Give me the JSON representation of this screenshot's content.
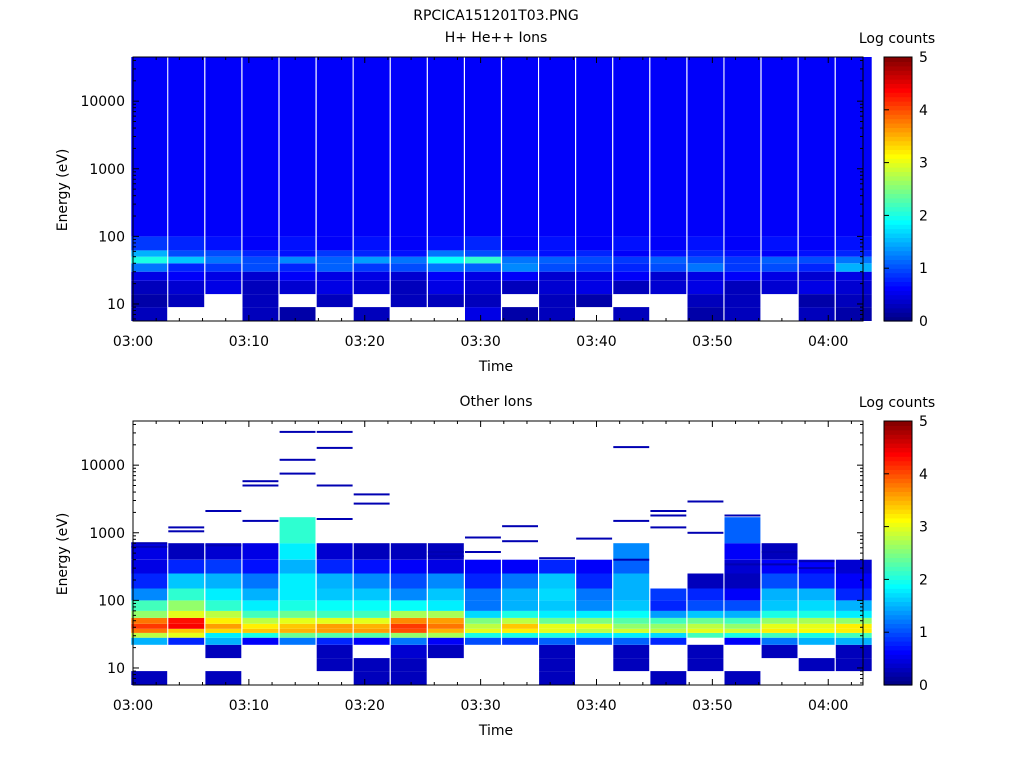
{
  "figure_title": "RPCICA151201T03.PNG",
  "colorbar_label": "Log counts",
  "colormap": [
    "#00007f",
    "#0000ff",
    "#007fff",
    "#00ffff",
    "#7fff7f",
    "#ffff00",
    "#ff7f00",
    "#ff0000",
    "#7f0000"
  ],
  "chart_data": [
    {
      "type": "heatmap",
      "title": "H+ He++ Ions",
      "xlabel": "Time",
      "ylabel": "Energy (eV)",
      "x_ticks": [
        "03:00",
        "03:10",
        "03:20",
        "03:30",
        "03:40",
        "03:50",
        "04:00"
      ],
      "x_tick_minutes": [
        0,
        10,
        20,
        30,
        40,
        50,
        60
      ],
      "x_range_minutes": [
        0,
        63
      ],
      "y_scale": "log",
      "y_ticks": [
        "10",
        "100",
        "1000",
        "10000"
      ],
      "y_tick_values": [
        10,
        100,
        1000,
        10000
      ],
      "y_range": [
        5.6,
        45000
      ],
      "colorbar": {
        "label": "Log counts",
        "range": [
          0,
          5
        ],
        "ticks": [
          "0",
          "1",
          "2",
          "3",
          "4",
          "5"
        ]
      },
      "time_bins_minutes": [
        1.4,
        4.6,
        7.8,
        11.0,
        14.2,
        17.4,
        20.6,
        23.8,
        27.0,
        30.2,
        33.4,
        36.6,
        39.8,
        43.0,
        46.2,
        49.4,
        52.6,
        55.8,
        59.0,
        62.2
      ],
      "energy_bands_eV": [
        {
          "range": [
            5.6,
            9
          ],
          "values": [
            0.3,
            0.0,
            0.0,
            0.3,
            0.2,
            0.0,
            0.3,
            0.0,
            0.0,
            0.5,
            0.2,
            0.3,
            0.0,
            0.3,
            0.0,
            0.2,
            0.3,
            0.0,
            0.3,
            0.2
          ]
        },
        {
          "range": [
            9,
            14
          ],
          "values": [
            0.2,
            0.3,
            0.0,
            0.3,
            0.0,
            0.3,
            0.0,
            0.3,
            0.3,
            0.3,
            0.0,
            0.3,
            0.2,
            0.0,
            0.0,
            0.3,
            0.3,
            0.0,
            0.2,
            0.3
          ]
        },
        {
          "range": [
            14,
            22
          ],
          "values": [
            0.3,
            0.4,
            0.5,
            0.3,
            0.4,
            0.5,
            0.4,
            0.3,
            0.5,
            0.4,
            0.3,
            0.4,
            0.5,
            0.3,
            0.4,
            0.5,
            0.3,
            0.4,
            0.5,
            0.4
          ]
        },
        {
          "range": [
            22,
            30
          ],
          "values": [
            0.5,
            0.6,
            0.5,
            0.4,
            0.6,
            0.5,
            0.5,
            0.4,
            0.6,
            0.5,
            0.6,
            0.4,
            0.5,
            0.6,
            0.4,
            0.5,
            0.6,
            0.5,
            0.4,
            0.5
          ]
        },
        {
          "range": [
            30,
            40
          ],
          "values": [
            1.2,
            0.8,
            0.9,
            1.0,
            0.8,
            1.1,
            0.9,
            1.0,
            1.2,
            1.1,
            1.3,
            1.0,
            0.9,
            0.8,
            1.0,
            1.2,
            0.9,
            1.0,
            0.8,
            1.5
          ]
        },
        {
          "range": [
            40,
            50
          ],
          "values": [
            2.0,
            1.6,
            1.2,
            1.0,
            1.3,
            1.1,
            1.4,
            1.2,
            1.9,
            2.1,
            1.2,
            1.1,
            1.0,
            0.9,
            1.1,
            1.0,
            0.9,
            1.1,
            1.0,
            1.2
          ]
        },
        {
          "range": [
            50,
            62
          ],
          "values": [
            1.5,
            1.0,
            1.0,
            0.8,
            0.7,
            0.9,
            0.8,
            0.7,
            1.2,
            1.0,
            0.8,
            0.7,
            0.8,
            0.6,
            0.7,
            0.8,
            0.7,
            0.6,
            0.7,
            0.8
          ]
        },
        {
          "range": [
            62,
            100
          ],
          "values": [
            0.9,
            0.8,
            0.7,
            0.6,
            0.7,
            0.6,
            0.7,
            0.6,
            0.7,
            0.8,
            0.6,
            0.7,
            0.6,
            0.7,
            0.6,
            0.7,
            0.6,
            0.7,
            0.6,
            0.7
          ]
        },
        {
          "range": [
            100,
            45000
          ],
          "values": [
            0.6,
            0.6,
            0.6,
            0.6,
            0.6,
            0.6,
            0.6,
            0.6,
            0.6,
            0.6,
            0.6,
            0.6,
            0.6,
            0.6,
            0.6,
            0.6,
            0.6,
            0.6,
            0.6,
            0.6
          ]
        }
      ]
    },
    {
      "type": "heatmap",
      "title": "Other Ions",
      "xlabel": "Time",
      "ylabel": "Energy (eV)",
      "x_ticks": [
        "03:00",
        "03:10",
        "03:20",
        "03:30",
        "03:40",
        "03:50",
        "04:00"
      ],
      "x_tick_minutes": [
        0,
        10,
        20,
        30,
        40,
        50,
        60
      ],
      "x_range_minutes": [
        0,
        63
      ],
      "y_scale": "log",
      "y_ticks": [
        "10",
        "100",
        "1000",
        "10000"
      ],
      "y_tick_values": [
        10,
        100,
        1000,
        10000
      ],
      "y_range": [
        5.6,
        45000
      ],
      "colorbar": {
        "label": "Log counts",
        "range": [
          0,
          5
        ],
        "ticks": [
          "0",
          "1",
          "2",
          "3",
          "4",
          "5"
        ]
      },
      "time_bins_minutes": [
        1.4,
        4.6,
        7.8,
        11.0,
        14.2,
        17.4,
        20.6,
        23.8,
        27.0,
        30.2,
        33.4,
        36.6,
        39.8,
        43.0,
        46.2,
        49.4,
        52.6,
        55.8,
        59.0,
        62.2
      ],
      "energy_bands_eV": [
        {
          "range": [
            5.6,
            9
          ],
          "values": [
            0.3,
            0.0,
            0.3,
            0.0,
            0.0,
            0.0,
            0.3,
            0.3,
            0.0,
            0.0,
            0.0,
            0.3,
            0.0,
            0.0,
            0.3,
            0.0,
            0.3,
            0.0,
            0.0,
            0.0
          ]
        },
        {
          "range": [
            9,
            14
          ],
          "values": [
            0.0,
            0.0,
            0.0,
            0.0,
            0.0,
            0.3,
            0.3,
            0.3,
            0.0,
            0.0,
            0.0,
            0.3,
            0.0,
            0.3,
            0.0,
            0.3,
            0.0,
            0.0,
            0.3,
            0.3
          ]
        },
        {
          "range": [
            14,
            22
          ],
          "values": [
            0.0,
            0.0,
            0.3,
            0.0,
            0.0,
            0.3,
            0.0,
            0.4,
            0.3,
            0.0,
            0.0,
            0.3,
            0.0,
            0.3,
            0.0,
            0.3,
            0.0,
            0.3,
            0.0,
            0.3
          ]
        },
        {
          "range": [
            22,
            28
          ],
          "values": [
            1.5,
            0.8,
            1.5,
            0.6,
            1.2,
            0.8,
            0.6,
            1.2,
            0.6,
            1.0,
            0.9,
            1.1,
            1.0,
            1.1,
            0.8,
            0.0,
            0.6,
            1.2,
            1.5,
            1.5
          ]
        },
        {
          "range": [
            28,
            33
          ],
          "values": [
            2.8,
            3.0,
            1.8,
            2.0,
            2.4,
            2.3,
            2.3,
            2.6,
            2.7,
            2.0,
            2.0,
            2.0,
            1.8,
            1.8,
            1.7,
            2.2,
            2.0,
            2.2,
            2.0,
            2.2
          ]
        },
        {
          "range": [
            33,
            38
          ],
          "values": [
            3.8,
            3.4,
            3.3,
            3.4,
            3.5,
            3.6,
            3.6,
            4.0,
            3.5,
            3.0,
            3.2,
            3.0,
            2.8,
            2.9,
            2.8,
            3.0,
            2.9,
            3.2,
            3.1,
            3.2
          ]
        },
        {
          "range": [
            38,
            45
          ],
          "values": [
            4.1,
            4.4,
            3.6,
            3.2,
            3.4,
            3.6,
            3.5,
            4.1,
            3.8,
            2.8,
            3.4,
            3.0,
            3.0,
            2.6,
            2.6,
            2.8,
            2.6,
            3.0,
            3.0,
            3.2
          ]
        },
        {
          "range": [
            45,
            55
          ],
          "values": [
            3.8,
            4.3,
            3.2,
            2.8,
            3.0,
            3.0,
            3.0,
            3.7,
            3.6,
            2.5,
            2.8,
            2.4,
            2.5,
            2.3,
            2.2,
            2.4,
            2.2,
            2.6,
            2.7,
            2.6
          ]
        },
        {
          "range": [
            55,
            70
          ],
          "values": [
            2.6,
            3.0,
            2.8,
            2.2,
            2.4,
            2.2,
            2.2,
            2.7,
            2.7,
            1.7,
            2.0,
            1.8,
            1.8,
            1.9,
            1.4,
            1.6,
            1.5,
            2.0,
            2.0,
            1.8
          ]
        },
        {
          "range": [
            70,
            100
          ],
          "values": [
            2.2,
            2.6,
            2.1,
            1.8,
            2.0,
            1.9,
            1.9,
            1.9,
            1.8,
            1.2,
            1.5,
            1.6,
            1.3,
            1.6,
            0.8,
            1.0,
            1.0,
            1.6,
            1.7,
            1.5
          ]
        },
        {
          "range": [
            100,
            150
          ],
          "values": [
            1.3,
            2.1,
            1.8,
            1.5,
            1.8,
            1.6,
            1.6,
            1.3,
            1.6,
            1.2,
            1.5,
            1.7,
            1.2,
            1.5,
            0.9,
            0.8,
            0.6,
            1.5,
            1.5,
            0.8
          ]
        },
        {
          "range": [
            150,
            250
          ],
          "values": [
            0.8,
            1.6,
            1.5,
            1.2,
            1.8,
            1.5,
            1.3,
            1.0,
            1.3,
            0.8,
            1.2,
            1.6,
            0.8,
            1.5,
            0.0,
            0.3,
            0.3,
            1.0,
            0.8,
            0.6
          ]
        },
        {
          "range": [
            250,
            400
          ],
          "values": [
            0.5,
            0.8,
            0.9,
            0.7,
            1.5,
            0.8,
            0.7,
            0.6,
            0.5,
            0.6,
            0.6,
            0.8,
            0.6,
            1.1,
            0.0,
            0.0,
            0.4,
            0.6,
            0.6,
            0.4
          ]
        },
        {
          "range": [
            400,
            700
          ],
          "values": [
            0.5,
            0.3,
            0.4,
            0.5,
            1.8,
            0.4,
            0.3,
            0.3,
            0.3,
            0.0,
            0.0,
            0.0,
            0.0,
            1.3,
            0.0,
            0.0,
            0.6,
            0.3,
            0.0,
            0.0
          ]
        },
        {
          "range": [
            700,
            1700
          ],
          "values": [
            0.0,
            0.0,
            0.0,
            0.0,
            2.1,
            0.0,
            0.0,
            0.0,
            0.0,
            0.0,
            0.0,
            0.0,
            0.0,
            0.0,
            0.0,
            0.0,
            1.1,
            0.0,
            0.0,
            0.0
          ]
        }
      ],
      "sparse_lines": [
        {
          "t": 1.4,
          "E": [
            700,
            620
          ]
        },
        {
          "t": 4.6,
          "E": [
            1200,
            1050
          ]
        },
        {
          "t": 7.8,
          "E": [
            650,
            2100
          ]
        },
        {
          "t": 11.0,
          "E": [
            5800,
            5000,
            1500
          ]
        },
        {
          "t": 14.2,
          "E": [
            31000,
            12000,
            7500
          ]
        },
        {
          "t": 17.4,
          "E": [
            31000,
            18000,
            5000,
            1600
          ]
        },
        {
          "t": 20.6,
          "E": [
            3700,
            2700
          ]
        },
        {
          "t": 27.0,
          "E": [
            520,
            450
          ]
        },
        {
          "t": 30.2,
          "E": [
            850,
            520
          ]
        },
        {
          "t": 33.4,
          "E": [
            1250,
            750
          ]
        },
        {
          "t": 36.6,
          "E": [
            420
          ]
        },
        {
          "t": 39.8,
          "E": [
            820
          ]
        },
        {
          "t": 43.0,
          "E": [
            18500,
            1500,
            400
          ]
        },
        {
          "t": 46.2,
          "E": [
            2100,
            1800,
            1200
          ]
        },
        {
          "t": 49.4,
          "E": [
            2900,
            1000
          ]
        },
        {
          "t": 52.6,
          "E": [
            1800,
            340
          ]
        },
        {
          "t": 55.8,
          "E": [
            520,
            340
          ]
        },
        {
          "t": 59.0,
          "E": [
            380,
            300
          ]
        }
      ],
      "sparse_lines_level": 0.25
    }
  ]
}
